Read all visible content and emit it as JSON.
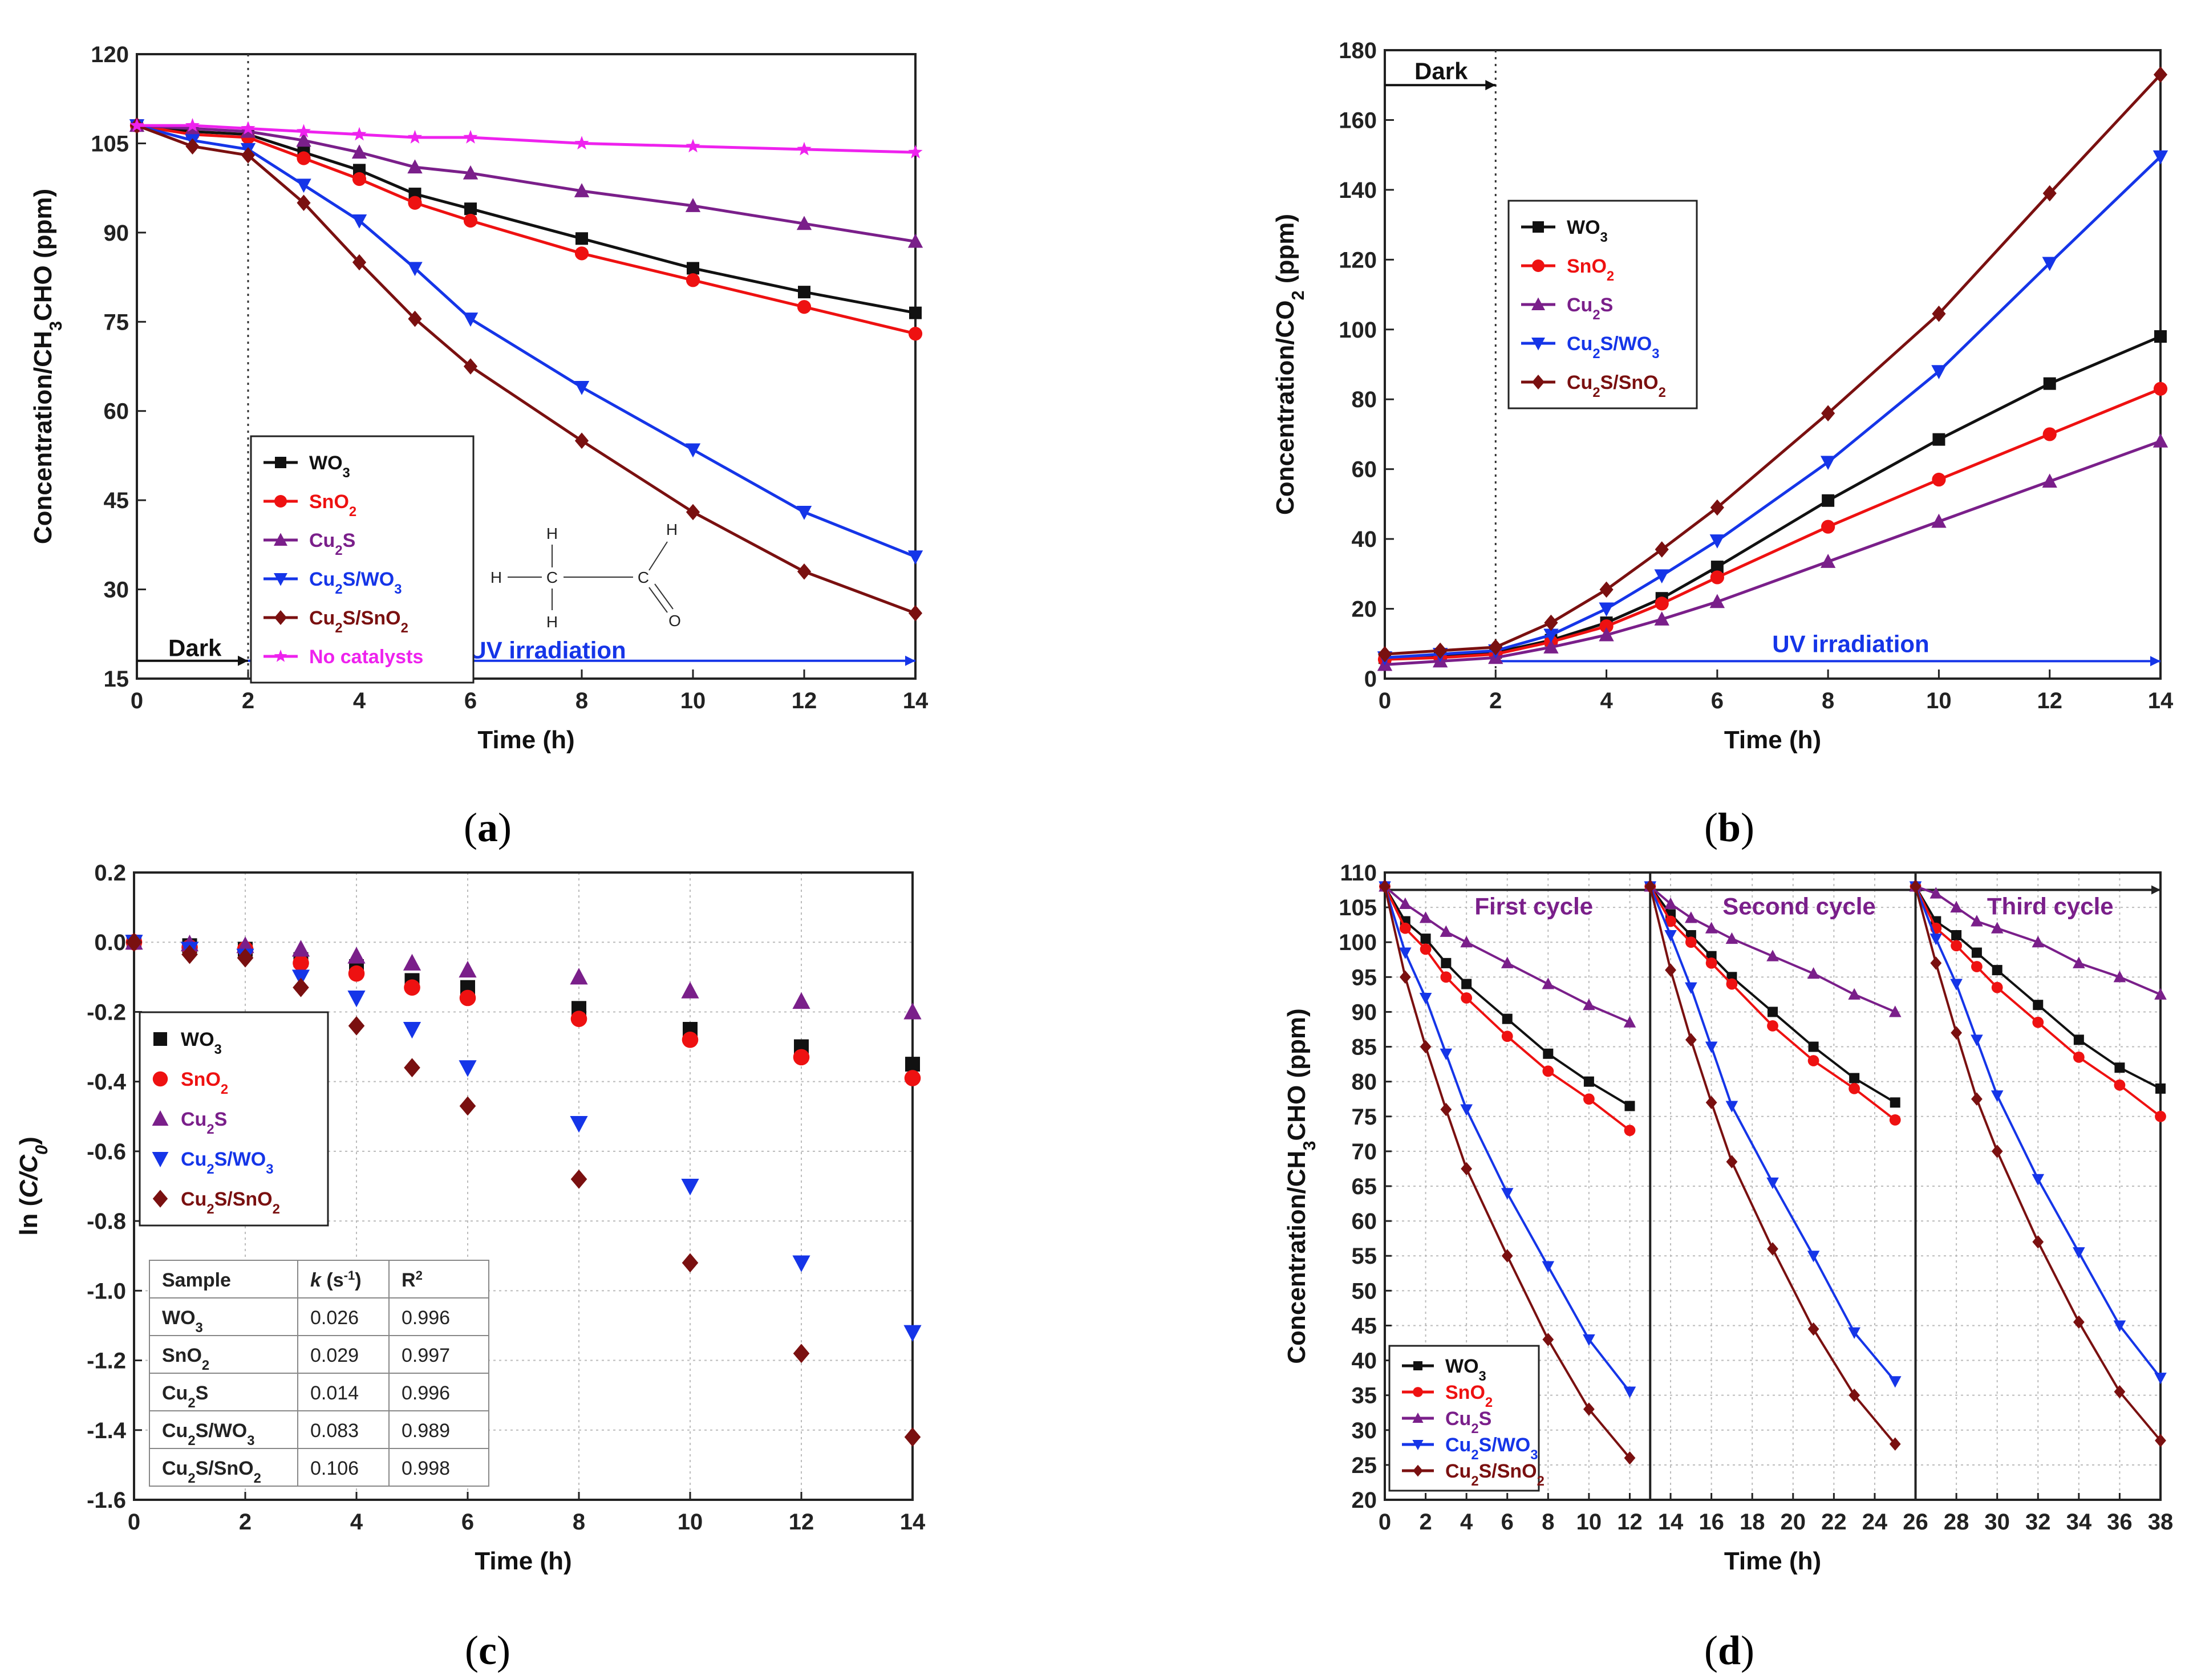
{
  "panel_labels": [
    "a",
    "b",
    "c",
    "d"
  ],
  "series_colors": {
    "WO3": "#111111",
    "SnO2": "#ee1111",
    "Cu2S": "#7a1f8a",
    "Cu2S/WO3": "#1535e8",
    "Cu2S/SnO2": "#7a1010",
    "No catalysts": "#ee22ee"
  },
  "series_markers": {
    "WO3": "square",
    "SnO2": "circle",
    "Cu2S": "triangle-up",
    "Cu2S/WO3": "triangle-down",
    "Cu2S/SnO2": "diamond",
    "No catalysts": "star"
  },
  "chart_data": [
    {
      "id": "a",
      "type": "line",
      "xlabel": "Time (h)",
      "ylabel": "Concentration/CH3CHO (ppm)",
      "xlim": [
        0,
        14
      ],
      "ylim": [
        15,
        120
      ],
      "xticks": [
        0,
        2,
        4,
        6,
        8,
        10,
        12,
        14
      ],
      "yticks": [
        15,
        30,
        45,
        60,
        75,
        90,
        105,
        120
      ],
      "x": [
        0,
        1,
        2,
        3,
        4,
        5,
        6,
        8,
        10,
        12,
        14
      ],
      "series": [
        {
          "name": "WO3",
          "values": [
            108,
            107,
            106.5,
            103.5,
            100.5,
            96.5,
            94,
            89,
            84,
            80,
            76.5
          ]
        },
        {
          "name": "SnO2",
          "values": [
            108,
            106.5,
            106,
            102.5,
            99,
            95,
            92,
            86.5,
            82,
            77.5,
            73
          ]
        },
        {
          "name": "Cu2S",
          "values": [
            108,
            107.5,
            107,
            105.5,
            103.5,
            101,
            100,
            97,
            94.5,
            91.5,
            88.5
          ]
        },
        {
          "name": "Cu2S/WO3",
          "values": [
            108,
            105.5,
            104,
            98,
            92,
            84,
            75.5,
            64,
            53.5,
            43,
            35.5
          ]
        },
        {
          "name": "Cu2S/SnO2",
          "values": [
            108,
            104.5,
            103,
            95,
            85,
            75.5,
            67.5,
            55,
            43,
            33,
            26
          ]
        },
        {
          "name": "No catalysts",
          "values": [
            108,
            108,
            107.5,
            107,
            106.5,
            106,
            106,
            105,
            104.5,
            104,
            103.5
          ]
        }
      ],
      "legend_labels": [
        "WO3",
        "SnO2",
        "Cu2S",
        "Cu2S/WO3",
        "Cu2S/SnO2",
        "No catalysts"
      ],
      "dark_label": "Dark",
      "uv_label": "UV irradiation",
      "divider_x": 2,
      "inset_molecule": "acetaldehyde",
      "molecule_atoms": [
        "H",
        "H",
        "H",
        "C",
        "C",
        "H",
        "O"
      ]
    },
    {
      "id": "b",
      "type": "line",
      "xlabel": "Time (h)",
      "ylabel": "Concentration/CO2 (ppm)",
      "xlim": [
        0,
        14
      ],
      "ylim": [
        0,
        180
      ],
      "xticks": [
        0,
        2,
        4,
        6,
        8,
        10,
        12,
        14
      ],
      "yticks": [
        0,
        20,
        40,
        60,
        80,
        100,
        120,
        140,
        160,
        180
      ],
      "x": [
        0,
        1,
        2,
        3,
        4,
        5,
        6,
        8,
        10,
        12,
        14
      ],
      "series": [
        {
          "name": "WO3",
          "values": [
            6,
            6.5,
            7.5,
            11,
            16,
            23,
            32,
            51,
            68.5,
            84.5,
            98
          ]
        },
        {
          "name": "SnO2",
          "values": [
            5.5,
            6,
            7,
            10.5,
            15,
            21.5,
            29,
            43.5,
            57,
            70,
            83
          ]
        },
        {
          "name": "Cu2S",
          "values": [
            4,
            5,
            6,
            9,
            12.5,
            17,
            22,
            33.5,
            45,
            56.5,
            68
          ]
        },
        {
          "name": "Cu2S/WO3",
          "values": [
            6,
            7,
            8,
            12.5,
            20,
            29.5,
            39.5,
            62,
            88,
            119,
            149.5
          ]
        },
        {
          "name": "Cu2S/SnO2",
          "values": [
            7,
            8,
            9,
            16,
            25.5,
            37,
            49,
            76,
            104.5,
            139,
            173
          ]
        }
      ],
      "legend_labels": [
        "WO3",
        "SnO2",
        "Cu2S",
        "Cu2S/WO3",
        "Cu2S/SnO2"
      ],
      "dark_label": "Dark",
      "uv_label": "UV irradiation",
      "divider_x": 2
    },
    {
      "id": "c",
      "type": "scatter",
      "xlabel": "Time (h)",
      "ylabel": "ln (C/C0)",
      "xlim": [
        0,
        14
      ],
      "ylim": [
        -1.6,
        0.2
      ],
      "xticks": [
        0,
        2,
        4,
        6,
        8,
        10,
        12,
        14
      ],
      "yticks": [
        -1.6,
        -1.4,
        -1.2,
        -1.0,
        -0.8,
        -0.6,
        -0.4,
        -0.2,
        0.0,
        0.2
      ],
      "ytick_labels": [
        "-1.6",
        "-1.4",
        "-1.2",
        "-1.0",
        "-0.8",
        "-0.6",
        "-0.4",
        "-0.2",
        "0.0",
        "0.2"
      ],
      "x": [
        0,
        1,
        2,
        3,
        4,
        5,
        6,
        8,
        10,
        12,
        14
      ],
      "series": [
        {
          "name": "WO3",
          "values": [
            0,
            -0.01,
            -0.02,
            -0.05,
            -0.07,
            -0.11,
            -0.13,
            -0.19,
            -0.25,
            -0.3,
            -0.35
          ]
        },
        {
          "name": "SnO2",
          "values": [
            0,
            -0.015,
            -0.02,
            -0.06,
            -0.09,
            -0.13,
            -0.16,
            -0.22,
            -0.28,
            -0.33,
            -0.39
          ]
        },
        {
          "name": "Cu2S",
          "values": [
            0,
            -0.005,
            -0.01,
            -0.02,
            -0.04,
            -0.06,
            -0.08,
            -0.1,
            -0.14,
            -0.17,
            -0.2
          ]
        },
        {
          "name": "Cu2S/WO3",
          "values": [
            0,
            -0.02,
            -0.04,
            -0.1,
            -0.16,
            -0.25,
            -0.36,
            -0.52,
            -0.7,
            -0.92,
            -1.12
          ]
        },
        {
          "name": "Cu2S/SnO2",
          "values": [
            0,
            -0.035,
            -0.045,
            -0.13,
            -0.24,
            -0.36,
            -0.47,
            -0.68,
            -0.92,
            -1.18,
            -1.42
          ]
        }
      ],
      "legend_labels": [
        "WO3",
        "SnO2",
        "Cu2S",
        "Cu2S/WO3",
        "Cu2S/SnO2"
      ],
      "table": {
        "headers": [
          "Sample",
          "k (s-1)",
          "R2"
        ],
        "rows": [
          [
            "WO3",
            "0.026",
            "0.996"
          ],
          [
            "SnO2",
            "0.029",
            "0.997"
          ],
          [
            "Cu2S",
            "0.014",
            "0.996"
          ],
          [
            "Cu2S/WO3",
            "0.083",
            "0.989"
          ],
          [
            "Cu2S/SnO2",
            "0.106",
            "0.998"
          ]
        ]
      }
    },
    {
      "id": "d",
      "type": "line",
      "xlabel": "Time (h)",
      "ylabel": "Concentration/CH3CHO (ppm)",
      "xlim": [
        0,
        38
      ],
      "ylim": [
        20,
        110
      ],
      "xticks": [
        0,
        2,
        4,
        6,
        8,
        10,
        12,
        14,
        16,
        18,
        20,
        22,
        24,
        26,
        28,
        30,
        32,
        34,
        36,
        38
      ],
      "yticks": [
        20,
        25,
        30,
        35,
        40,
        45,
        50,
        55,
        60,
        65,
        70,
        75,
        80,
        85,
        90,
        95,
        100,
        105,
        110
      ],
      "cycle_labels": [
        "First cycle",
        "Second cycle",
        "Third cycle"
      ],
      "cycle_dividers": [
        13,
        26
      ],
      "x": [
        0,
        1,
        2,
        3,
        4,
        6,
        8,
        10,
        12,
        13,
        14,
        15,
        16,
        17,
        19,
        21,
        23,
        25,
        26,
        27,
        28,
        29,
        30,
        32,
        34,
        36,
        38
      ],
      "series": [
        {
          "name": "WO3",
          "values": [
            108,
            103,
            100.5,
            97,
            94,
            89,
            84,
            80,
            76.5,
            108,
            104,
            101,
            98,
            95,
            90,
            85,
            80.5,
            77,
            108,
            103,
            101,
            98.5,
            96,
            91,
            86,
            82,
            79
          ]
        },
        {
          "name": "SnO2",
          "values": [
            108,
            102,
            99,
            95,
            92,
            86.5,
            81.5,
            77.5,
            73,
            108,
            103,
            100,
            97,
            94,
            88,
            83,
            79,
            74.5,
            108,
            102,
            99.5,
            96.5,
            93.5,
            88.5,
            83.5,
            79.5,
            75
          ]
        },
        {
          "name": "Cu2S",
          "values": [
            108,
            105.5,
            103.5,
            101.5,
            100,
            97,
            94,
            91,
            88.5,
            108,
            105.5,
            103.5,
            102,
            100.5,
            98,
            95.5,
            92.5,
            90,
            108,
            107,
            105,
            103,
            102,
            100,
            97,
            95,
            92.5
          ]
        },
        {
          "name": "Cu2S/WO3",
          "values": [
            108,
            98.5,
            92,
            84,
            76,
            64,
            53.5,
            43,
            35.5,
            108,
            101,
            93.5,
            85,
            76.5,
            65.5,
            55,
            44,
            37,
            108,
            100.5,
            94,
            86,
            78,
            66,
            55.5,
            45,
            37.5
          ]
        },
        {
          "name": "Cu2S/SnO2",
          "values": [
            108,
            95,
            85,
            76,
            67.5,
            55,
            43,
            33,
            26,
            108,
            96,
            86,
            77,
            68.5,
            56,
            44.5,
            35,
            28,
            108,
            97,
            87,
            77.5,
            70,
            57,
            45.5,
            35.5,
            28.5
          ]
        }
      ],
      "legend_labels": [
        "WO3",
        "SnO2",
        "Cu2S",
        "Cu2S/WO3",
        "Cu2S/SnO2"
      ]
    }
  ]
}
